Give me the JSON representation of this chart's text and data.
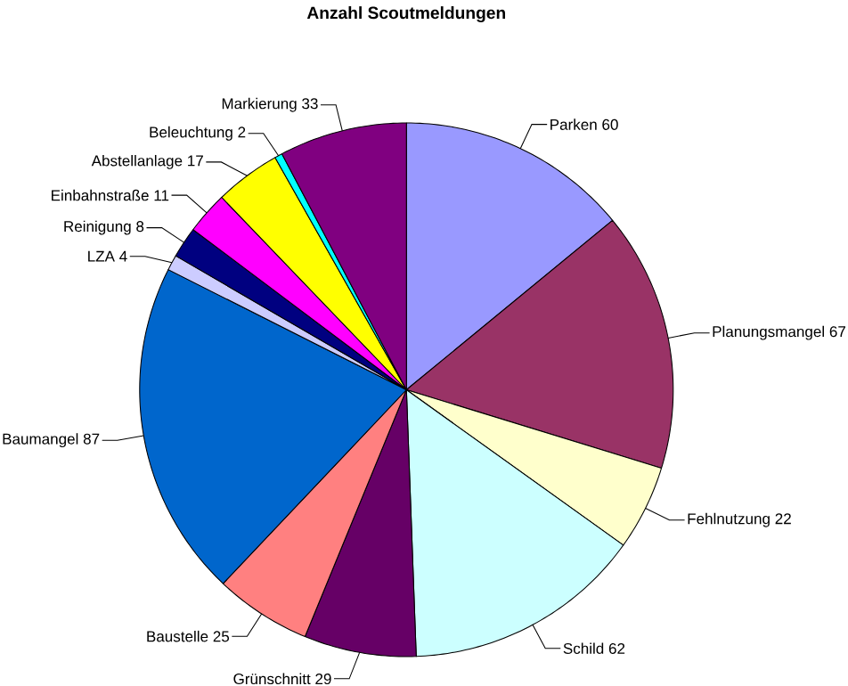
{
  "chart_data": {
    "type": "pie",
    "title": "Anzahl Scoutmeldungen",
    "categories": [
      "Parken",
      "Planungsmangel",
      "Fehlnutzung",
      "Schild",
      "Grünschnitt",
      "Baustelle",
      "Baumangel",
      "LZA",
      "Reinigung",
      "Einbahnstraße",
      "Abstellanlage",
      "Beleuchtung",
      "Markierung"
    ],
    "values": [
      60,
      67,
      22,
      62,
      29,
      25,
      87,
      4,
      8,
      11,
      17,
      2,
      33
    ],
    "colors": [
      "#9999ff",
      "#993366",
      "#ffffcc",
      "#ccffff",
      "#660066",
      "#ff8080",
      "#0066cc",
      "#ccccff",
      "#000080",
      "#ff00ff",
      "#ffff00",
      "#00ffff",
      "#800080"
    ],
    "data_labels": true
  }
}
